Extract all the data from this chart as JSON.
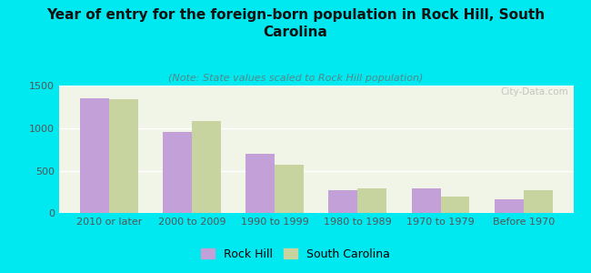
{
  "title": "Year of entry for the foreign-born population in Rock Hill, South\nCarolina",
  "subtitle": "(Note: State values scaled to Rock Hill population)",
  "categories": [
    "2010 or later",
    "2000 to 2009",
    "1990 to 1999",
    "1980 to 1989",
    "1970 to 1979",
    "Before 1970"
  ],
  "rock_hill_values": [
    1350,
    960,
    700,
    270,
    285,
    165
  ],
  "south_carolina_values": [
    1340,
    1090,
    565,
    295,
    195,
    270
  ],
  "rock_hill_color": "#c4a0d8",
  "south_carolina_color": "#c8d4a0",
  "background_color": "#00e8f0",
  "plot_bg_color": "#f0f5e8",
  "bar_width": 0.35,
  "ylim": [
    0,
    1500
  ],
  "yticks": [
    0,
    500,
    1000,
    1500
  ],
  "watermark": "City-Data.com",
  "title_fontsize": 11,
  "subtitle_fontsize": 8,
  "tick_fontsize": 8,
  "legend_fontsize": 9
}
